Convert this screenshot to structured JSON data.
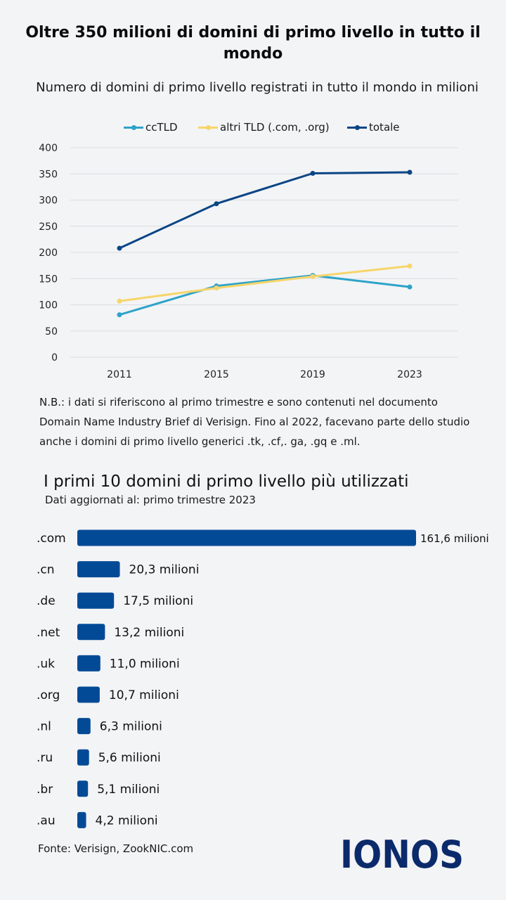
{
  "title": "Oltre 350 milioni di domini di primo livello in tutto il mondo",
  "subtitle": "Numero di domini di primo livello registrati in tutto il mondo in milioni",
  "note": "N.B.: i dati si riferiscono al primo trimestre e sono contenuti nel documento Domain Name Industry Brief di Verisign. Fino al 2022, facevano parte dello studio anche i domini di primo livello generici .tk, .cf,. ga, .gq e .ml.",
  "bar_section_title": "I primi 10 domini di primo livello più utilizzati",
  "bar_section_subtitle": "Dati aggiornati al: primo trimestre 2023",
  "source": "Fonte: Verisign, ZookNIC.com",
  "logo": "IONOS",
  "colors": {
    "cctld": "#2ea3c9",
    "altri": "#f7d56b",
    "totale": "#0a4585",
    "bar": "#034a96",
    "grid": "#dcdde0"
  },
  "chart_data": [
    {
      "type": "line",
      "x": [
        "2011",
        "2015",
        "2019",
        "2023"
      ],
      "ylim": [
        0,
        400
      ],
      "yticks": [
        "0",
        "50",
        "100",
        "150",
        "200",
        "250",
        "300",
        "350",
        "400"
      ],
      "legend_position": "top-center",
      "grid": true,
      "series": [
        {
          "name": "ccTLD",
          "values": [
            81,
            136,
            156,
            134
          ]
        },
        {
          "name": "altri TLD (.com, .org)",
          "values": [
            107,
            132,
            154,
            174
          ]
        },
        {
          "name": "totale",
          "values": [
            208,
            293,
            351,
            353
          ]
        }
      ]
    },
    {
      "type": "bar",
      "orientation": "horizontal",
      "categories": [
        ".com",
        ".cn",
        ".de",
        ".net",
        ".uk",
        ".org",
        ".nl",
        ".ru",
        ".br",
        ".au"
      ],
      "values": [
        161.6,
        20.3,
        17.5,
        13.2,
        11.0,
        10.7,
        6.3,
        5.6,
        5.1,
        4.2
      ],
      "value_labels": [
        "161,6 milioni",
        "20,3 milioni",
        "17,5 milioni",
        "13,2 milioni",
        "11,0 milioni",
        "10,7 milioni",
        "6,3 milioni",
        "5,6 milioni",
        "5,1 milioni",
        "4,2 milioni"
      ]
    }
  ]
}
